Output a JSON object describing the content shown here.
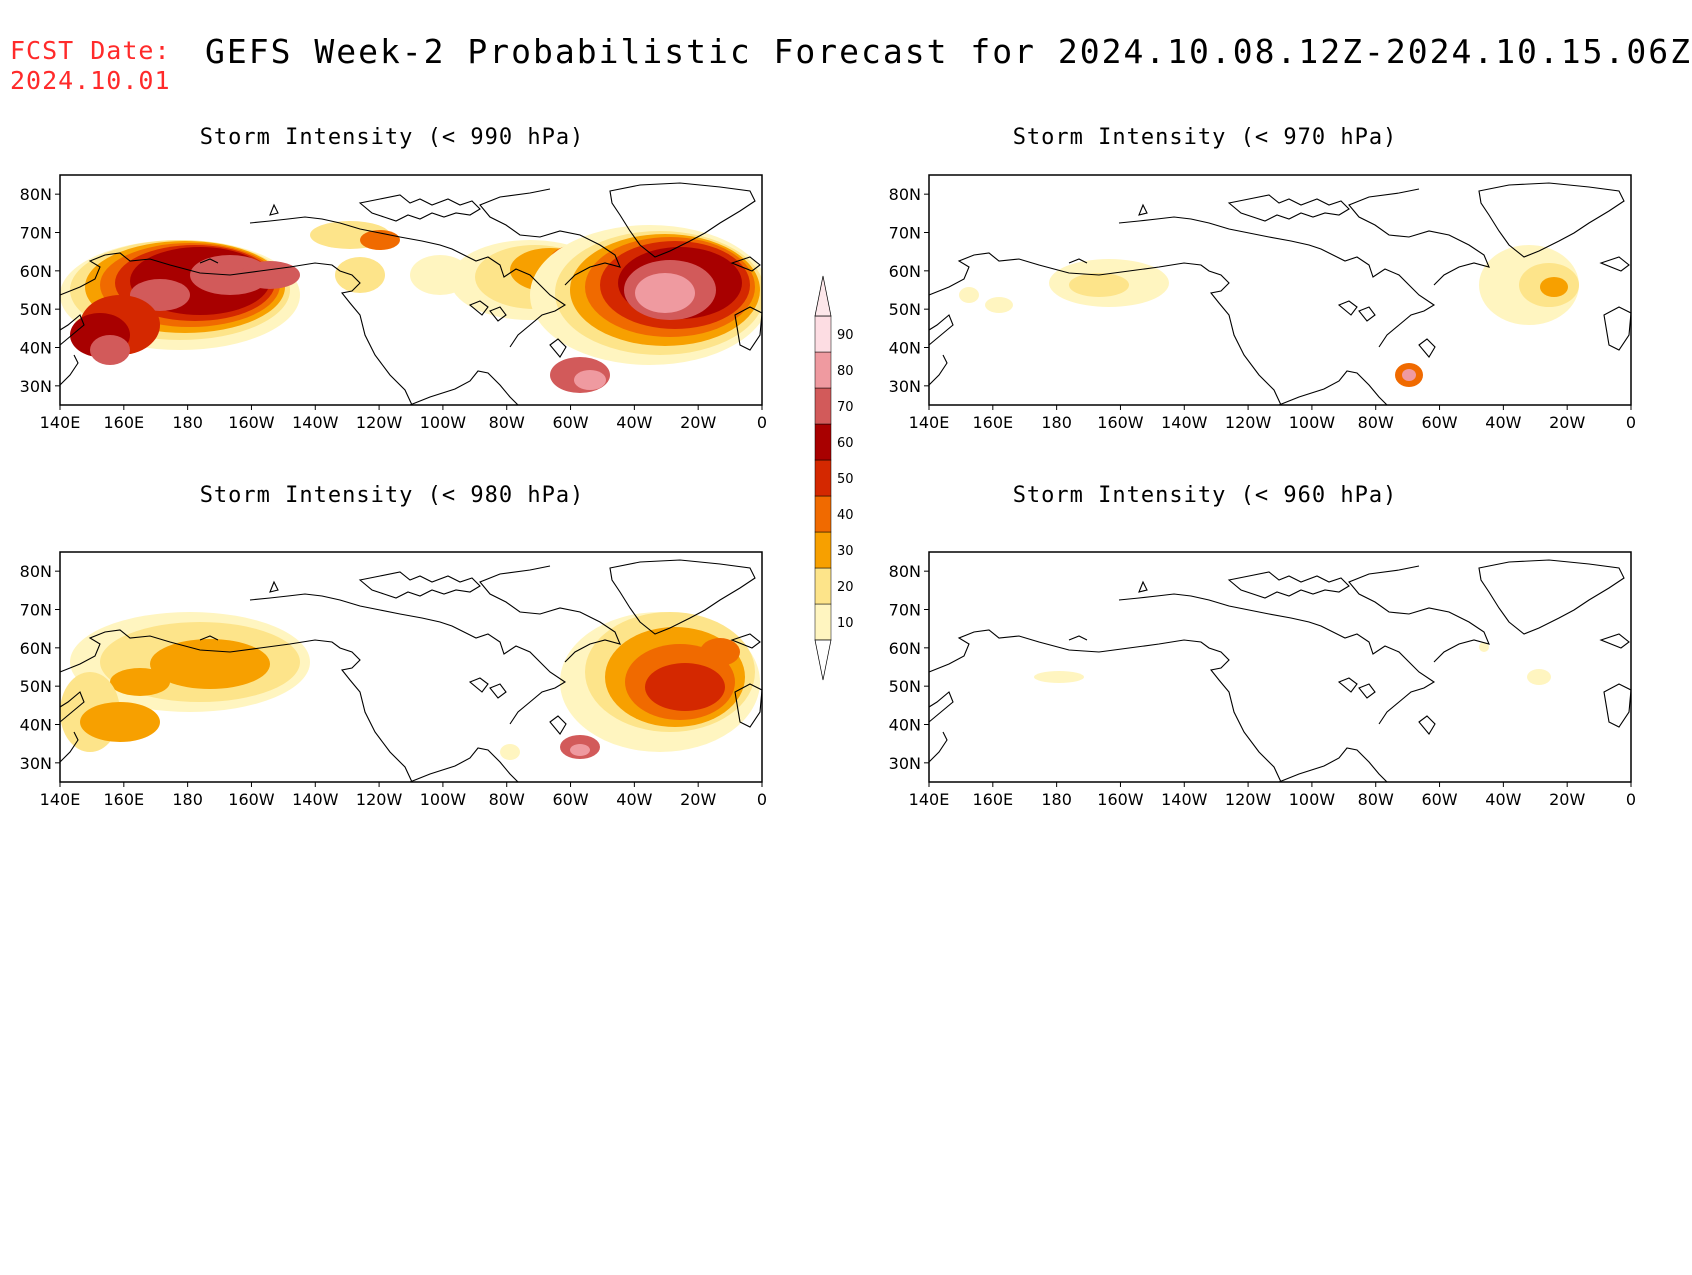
{
  "header": {
    "fcst_label": "FCST Date:",
    "fcst_date": "2024.10.01",
    "title": "GEFS Week-2 Probabilistic Forecast for 2024.10.08.12Z-2024.10.15.06Z"
  },
  "axes": {
    "lon_labels": [
      "140E",
      "160E",
      "180",
      "160W",
      "140W",
      "120W",
      "100W",
      "80W",
      "60W",
      "40W",
      "20W",
      "0"
    ],
    "lat_labels": [
      "80N",
      "70N",
      "60N",
      "50N",
      "40N",
      "30N"
    ]
  },
  "colorbar": {
    "levels": [
      "10",
      "20",
      "30",
      "40",
      "50",
      "60",
      "70",
      "80",
      "90"
    ],
    "colors": [
      "#fff5c0",
      "#fde48a",
      "#f7a000",
      "#f06a00",
      "#d42800",
      "#a80000",
      "#d25a5a",
      "#ef9aa0",
      "#fddde3"
    ]
  },
  "panels": [
    {
      "id": "p990",
      "title": "Storm Intensity (< 990 hPa)",
      "threshold_hPa": 990
    },
    {
      "id": "p970",
      "title": "Storm Intensity (< 970 hPa)",
      "threshold_hPa": 970
    },
    {
      "id": "p980",
      "title": "Storm Intensity (< 980 hPa)",
      "threshold_hPa": 980
    },
    {
      "id": "p960",
      "title": "Storm Intensity (< 960 hPa)",
      "threshold_hPa": 960
    }
  ]
}
